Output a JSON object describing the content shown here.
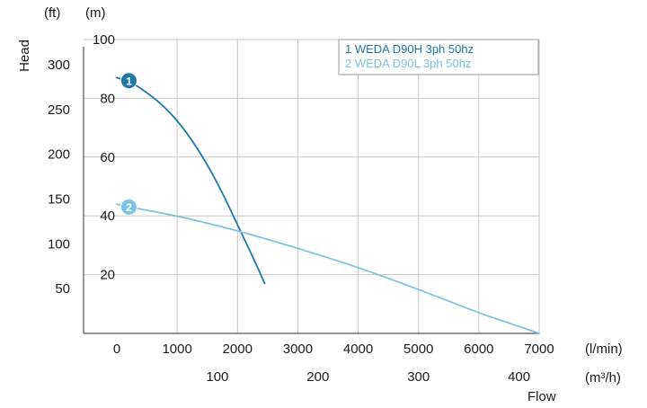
{
  "chart_data": {
    "type": "line",
    "xlabel": "Flow",
    "ylabel": "Head",
    "x_unit_primary": "(l/min)",
    "x_unit_secondary": "(m³/h)",
    "y_unit_primary": "(m)",
    "y_unit_secondary": "(ft)",
    "xlim": [
      0,
      7000
    ],
    "ylim": [
      0,
      100
    ],
    "x_ticks": [
      0,
      1000,
      2000,
      3000,
      4000,
      5000,
      6000,
      7000
    ],
    "y_ticks": [
      20,
      40,
      60,
      80,
      100
    ],
    "x2_ticks": [
      100,
      200,
      300,
      400
    ],
    "y2_ticks": [
      50,
      100,
      150,
      200,
      250,
      300
    ],
    "grid": true,
    "legend_position": "top-right",
    "colors": {
      "series1": "#1f78a8",
      "series2": "#7cc4e4",
      "axis": "#555555",
      "grid": "#c8c8c8"
    },
    "series": [
      {
        "id": "1",
        "name": "1 WEDA D90H 3ph 50hz",
        "color": "#1f78a8",
        "x": [
          0,
          200,
          500,
          800,
          1100,
          1400,
          1700,
          2000,
          2300,
          2450
        ],
        "y": [
          87,
          86,
          82,
          77,
          70,
          61,
          50,
          37,
          24,
          17
        ]
      },
      {
        "id": "2",
        "name": "2 WEDA D90L 3ph 50hz",
        "color": "#7cc4e4",
        "x": [
          0,
          200,
          1000,
          2000,
          3000,
          4000,
          5000,
          6000,
          6500,
          7000
        ],
        "y": [
          44,
          43,
          40,
          35,
          29,
          22.5,
          15,
          7,
          3.5,
          0
        ]
      }
    ]
  }
}
